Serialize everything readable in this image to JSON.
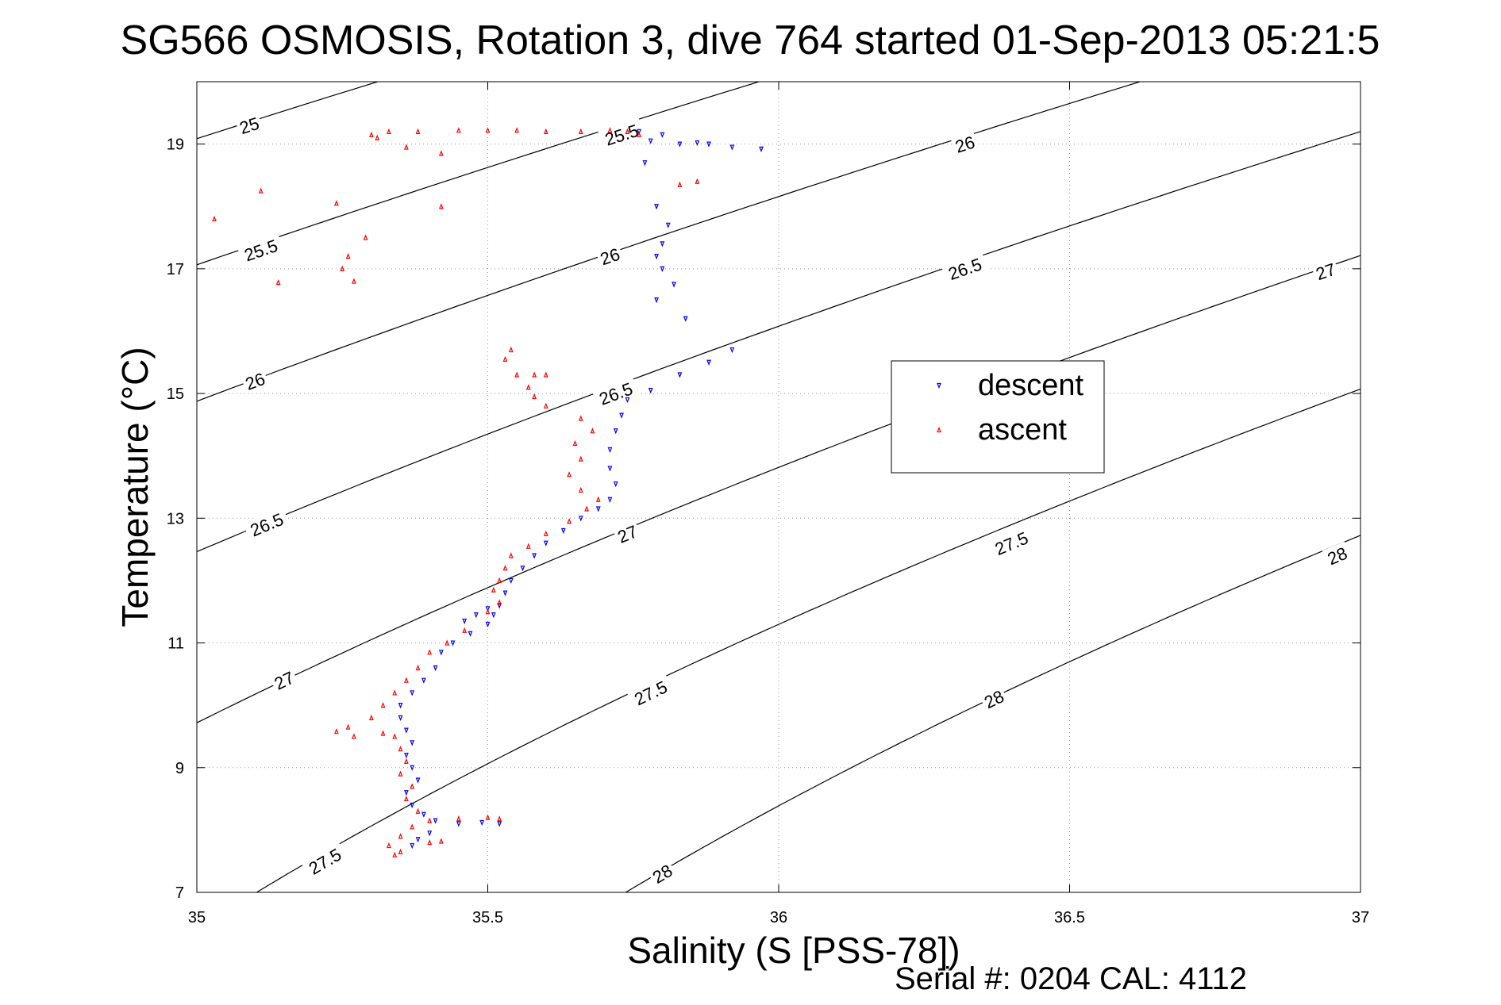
{
  "chart_data": {
    "type": "scatter",
    "title": "SG566 OSMOSIS, Rotation 3, dive 764 started 01-Sep-2013 05:21:5",
    "xlabel": "Salinity (S [PSS-78])",
    "ylabel": "Temperature (°C)",
    "xlim": [
      35,
      37
    ],
    "ylim": [
      7,
      20
    ],
    "x_ticks": [
      35,
      35.5,
      36,
      36.5,
      37
    ],
    "x_tick_labels": [
      "35",
      "35.5",
      "36",
      "36.5",
      "37"
    ],
    "y_ticks": [
      7,
      9,
      11,
      13,
      15,
      17,
      19
    ],
    "y_tick_labels": [
      "7",
      "9",
      "11",
      "13",
      "15",
      "17",
      "19"
    ],
    "grid": true,
    "legend": {
      "position": "right-center",
      "entries": [
        {
          "label": "descent",
          "color": "#0000ff",
          "marker": "triangle-down"
        },
        {
          "label": "ascent",
          "color": "#ff0000",
          "marker": "triangle-up"
        }
      ]
    },
    "contours": {
      "quantity": "sigma-theta",
      "levels": [
        25,
        25.5,
        26,
        26.5,
        27,
        27.5,
        28
      ],
      "color": "#000000",
      "labels": [
        {
          "level": 25,
          "text": "25",
          "at": [
            35.09,
            19.3
          ]
        },
        {
          "level": 25.5,
          "text": "25.5",
          "at": [
            35.11,
            17.3
          ]
        },
        {
          "level": 26,
          "text": "26",
          "at": [
            35.1,
            15.2
          ]
        },
        {
          "level": 26.5,
          "text": "26.5",
          "at": [
            35.12,
            12.9
          ]
        },
        {
          "level": 27,
          "text": "27",
          "at": [
            35.15,
            10.4
          ]
        },
        {
          "level": 27.5,
          "text": "27.5",
          "at": [
            35.22,
            7.5
          ]
        },
        {
          "level": 25.5,
          "text": "25.5",
          "at": [
            35.73,
            19.15
          ]
        },
        {
          "level": 26,
          "text": "26",
          "at": [
            35.71,
            17.2
          ]
        },
        {
          "level": 26.5,
          "text": "26.5",
          "at": [
            35.72,
            15.0
          ]
        },
        {
          "level": 27,
          "text": "27",
          "at": [
            35.74,
            12.75
          ]
        },
        {
          "level": 27.5,
          "text": "27.5",
          "at": [
            35.78,
            10.2
          ]
        },
        {
          "level": 28,
          "text": "28",
          "at": [
            35.8,
            7.3
          ]
        },
        {
          "level": 26,
          "text": "26",
          "at": [
            36.32,
            19.0
          ]
        },
        {
          "level": 26.5,
          "text": "26.5",
          "at": [
            36.32,
            17.0
          ]
        },
        {
          "level": 27.5,
          "text": "27.5",
          "at": [
            36.4,
            12.6
          ]
        },
        {
          "level": 28,
          "text": "28",
          "at": [
            36.37,
            10.1
          ]
        },
        {
          "level": 27,
          "text": "27",
          "at": [
            36.94,
            16.96
          ]
        },
        {
          "level": 28,
          "text": "28",
          "at": [
            36.96,
            12.4
          ]
        }
      ]
    },
    "series": [
      {
        "name": "descent",
        "color": "#0000ff",
        "marker": "triangle-down",
        "points": [
          [
            35.76,
            19.2
          ],
          [
            35.78,
            19.05
          ],
          [
            35.8,
            19.15
          ],
          [
            35.83,
            19.0
          ],
          [
            35.86,
            19.02
          ],
          [
            35.88,
            19.0
          ],
          [
            35.92,
            18.95
          ],
          [
            35.97,
            18.92
          ],
          [
            35.77,
            18.7
          ],
          [
            35.79,
            18.0
          ],
          [
            35.81,
            17.7
          ],
          [
            35.8,
            17.4
          ],
          [
            35.79,
            17.2
          ],
          [
            35.8,
            17.0
          ],
          [
            35.82,
            16.75
          ],
          [
            35.79,
            16.5
          ],
          [
            35.84,
            16.2
          ],
          [
            35.92,
            15.7
          ],
          [
            35.88,
            15.5
          ],
          [
            35.83,
            15.3
          ],
          [
            35.78,
            15.05
          ],
          [
            35.74,
            14.9
          ],
          [
            35.73,
            14.65
          ],
          [
            35.72,
            14.4
          ],
          [
            35.71,
            14.1
          ],
          [
            35.71,
            13.8
          ],
          [
            35.72,
            13.55
          ],
          [
            35.71,
            13.3
          ],
          [
            35.69,
            13.15
          ],
          [
            35.66,
            13.0
          ],
          [
            35.63,
            12.8
          ],
          [
            35.6,
            12.6
          ],
          [
            35.58,
            12.4
          ],
          [
            35.56,
            12.2
          ],
          [
            35.54,
            12.0
          ],
          [
            35.53,
            11.8
          ],
          [
            35.52,
            11.6
          ],
          [
            35.51,
            11.45
          ],
          [
            35.5,
            11.3
          ],
          [
            35.47,
            11.15
          ],
          [
            35.44,
            11.0
          ],
          [
            35.42,
            10.85
          ],
          [
            35.48,
            11.45
          ],
          [
            35.46,
            11.35
          ],
          [
            35.5,
            11.55
          ],
          [
            35.41,
            10.6
          ],
          [
            35.39,
            10.4
          ],
          [
            35.37,
            10.2
          ],
          [
            35.35,
            10.0
          ],
          [
            35.35,
            9.8
          ],
          [
            35.36,
            9.6
          ],
          [
            35.37,
            9.4
          ],
          [
            35.36,
            9.2
          ],
          [
            35.37,
            9.0
          ],
          [
            35.38,
            8.8
          ],
          [
            35.36,
            8.6
          ],
          [
            35.37,
            8.4
          ],
          [
            35.39,
            8.25
          ],
          [
            35.41,
            8.15
          ],
          [
            35.45,
            8.1
          ],
          [
            35.49,
            8.12
          ],
          [
            35.52,
            8.1
          ],
          [
            35.4,
            7.95
          ],
          [
            35.38,
            7.85
          ],
          [
            35.37,
            7.75
          ]
        ]
      },
      {
        "name": "ascent",
        "color": "#ff0000",
        "marker": "triangle-up",
        "points": [
          [
            35.3,
            19.15
          ],
          [
            35.33,
            19.2
          ],
          [
            35.38,
            19.2
          ],
          [
            35.45,
            19.22
          ],
          [
            35.5,
            19.22
          ],
          [
            35.55,
            19.22
          ],
          [
            35.6,
            19.2
          ],
          [
            35.66,
            19.2
          ],
          [
            35.71,
            19.22
          ],
          [
            35.74,
            19.2
          ],
          [
            35.76,
            19.15
          ],
          [
            35.31,
            19.1
          ],
          [
            35.36,
            18.95
          ],
          [
            35.42,
            18.85
          ],
          [
            35.11,
            18.25
          ],
          [
            35.03,
            17.8
          ],
          [
            35.24,
            18.05
          ],
          [
            35.42,
            18.0
          ],
          [
            35.29,
            17.5
          ],
          [
            35.26,
            17.2
          ],
          [
            35.25,
            17.0
          ],
          [
            35.14,
            16.78
          ],
          [
            35.27,
            16.8
          ],
          [
            35.86,
            18.4
          ],
          [
            35.83,
            18.35
          ],
          [
            35.54,
            15.7
          ],
          [
            35.53,
            15.55
          ],
          [
            35.55,
            15.3
          ],
          [
            35.58,
            15.3
          ],
          [
            35.6,
            15.3
          ],
          [
            35.57,
            15.1
          ],
          [
            35.58,
            14.95
          ],
          [
            35.6,
            14.8
          ],
          [
            35.66,
            14.6
          ],
          [
            35.68,
            14.4
          ],
          [
            35.65,
            14.2
          ],
          [
            35.66,
            13.95
          ],
          [
            35.64,
            13.7
          ],
          [
            35.66,
            13.45
          ],
          [
            35.69,
            13.3
          ],
          [
            35.67,
            13.15
          ],
          [
            35.64,
            12.95
          ],
          [
            35.6,
            12.75
          ],
          [
            35.57,
            12.55
          ],
          [
            35.54,
            12.4
          ],
          [
            35.53,
            12.2
          ],
          [
            35.52,
            12.0
          ],
          [
            35.51,
            11.85
          ],
          [
            35.52,
            11.65
          ],
          [
            35.5,
            11.5
          ],
          [
            35.46,
            11.2
          ],
          [
            35.43,
            11.0
          ],
          [
            35.4,
            10.85
          ],
          [
            35.38,
            10.6
          ],
          [
            35.36,
            10.4
          ],
          [
            35.34,
            10.2
          ],
          [
            35.32,
            10.0
          ],
          [
            35.3,
            9.8
          ],
          [
            35.26,
            9.65
          ],
          [
            35.24,
            9.58
          ],
          [
            35.27,
            9.5
          ],
          [
            35.32,
            9.55
          ],
          [
            35.34,
            9.5
          ],
          [
            35.35,
            9.3
          ],
          [
            35.36,
            9.1
          ],
          [
            35.35,
            8.9
          ],
          [
            35.37,
            8.7
          ],
          [
            35.36,
            8.5
          ],
          [
            35.38,
            8.3
          ],
          [
            35.4,
            8.15
          ],
          [
            35.37,
            8.05
          ],
          [
            35.35,
            7.9
          ],
          [
            35.33,
            7.75
          ],
          [
            35.35,
            7.65
          ],
          [
            35.34,
            7.6
          ],
          [
            35.45,
            8.18
          ],
          [
            35.5,
            8.2
          ],
          [
            35.52,
            8.18
          ],
          [
            35.4,
            7.8
          ],
          [
            35.42,
            7.82
          ]
        ]
      }
    ]
  },
  "footer": {
    "serial_text": "Serial #: 0204  CAL: 4112"
  }
}
